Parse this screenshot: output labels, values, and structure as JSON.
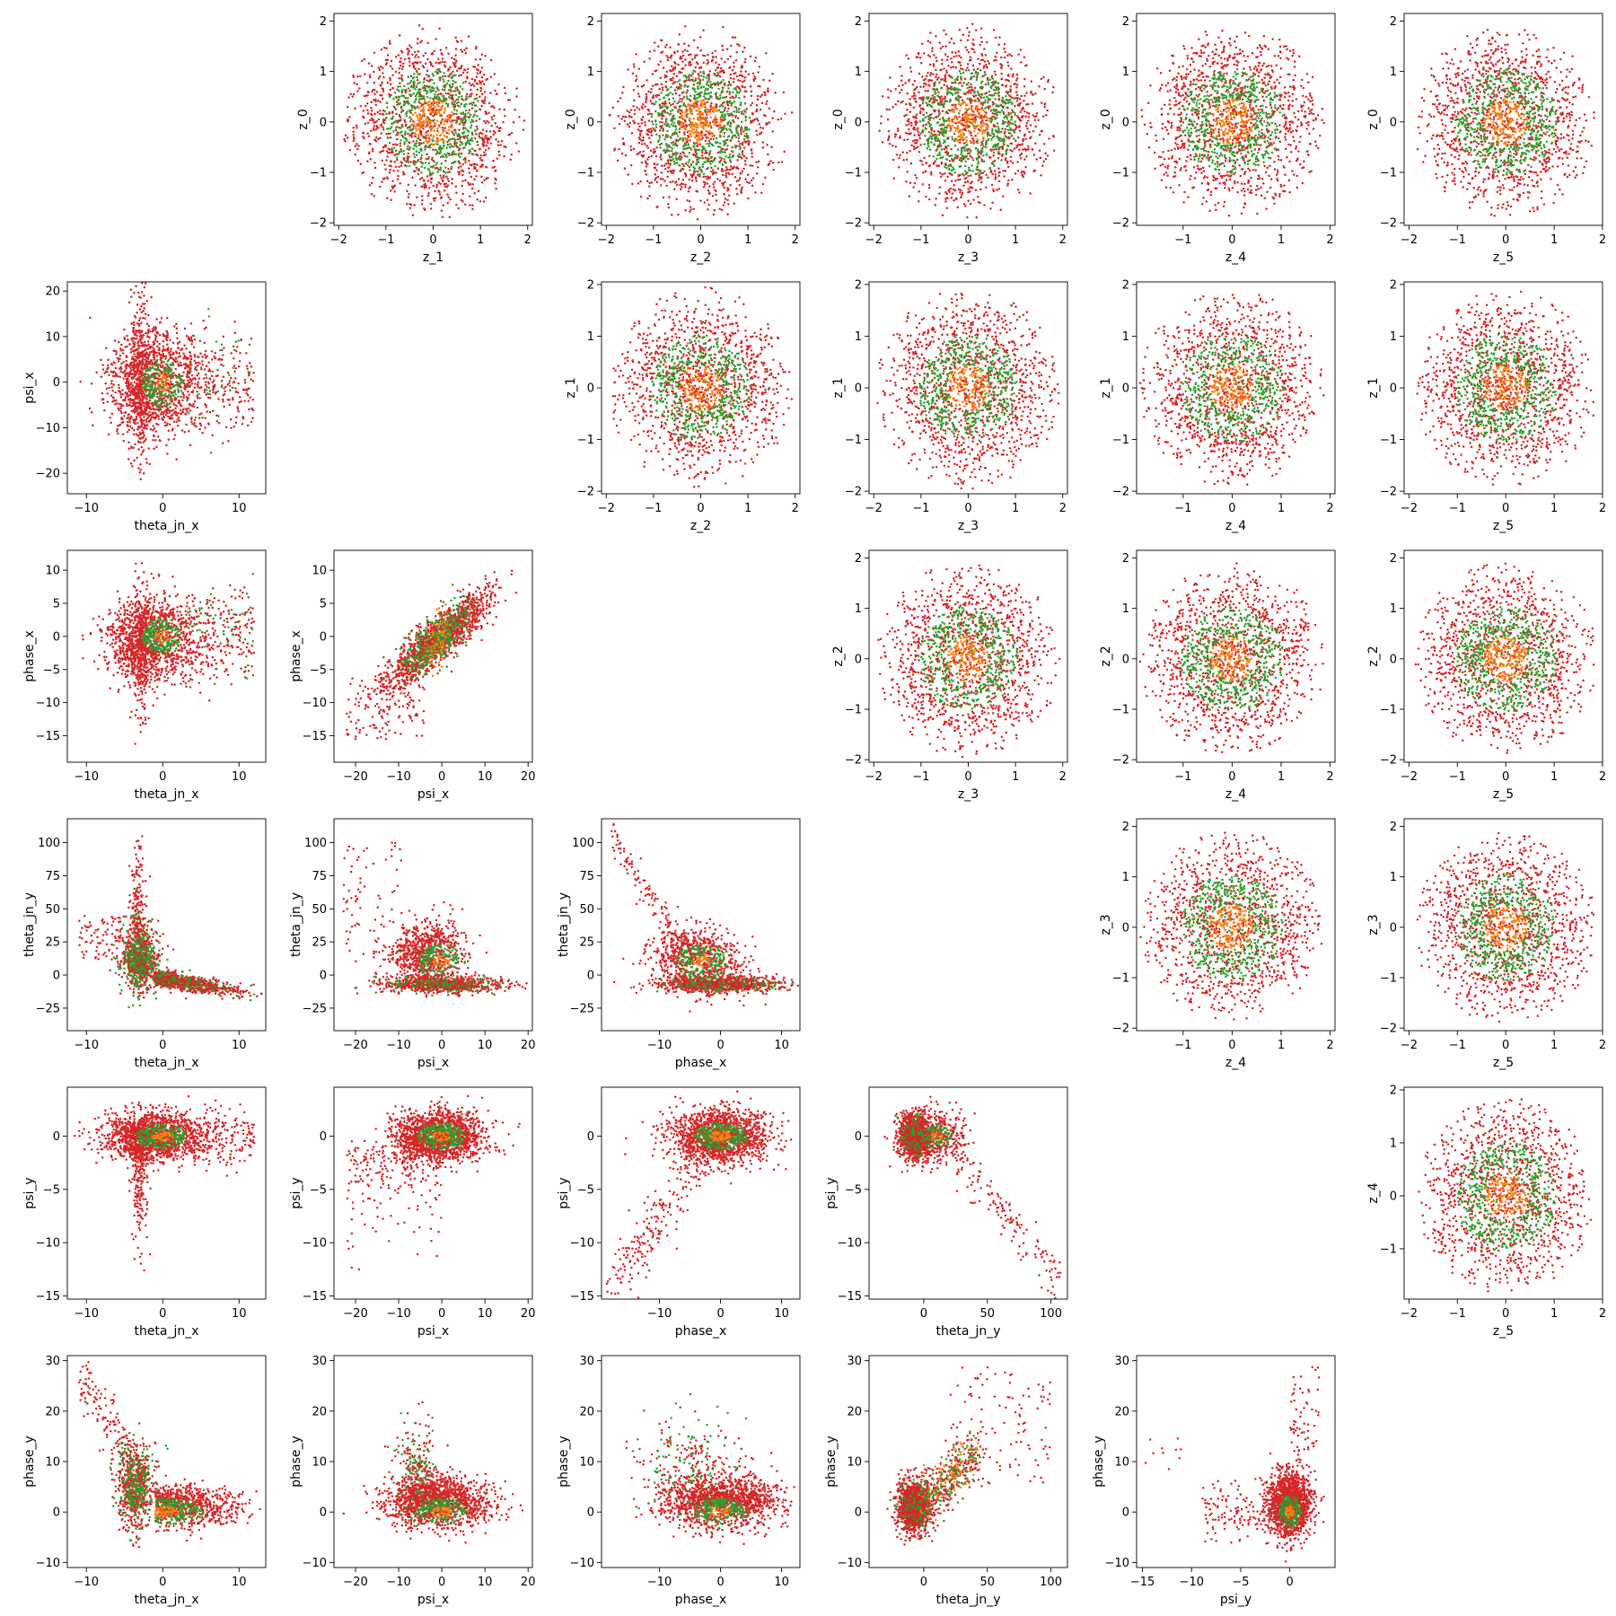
{
  "figure": {
    "description_free": true,
    "colors": {
      "outer": "#d62728",
      "middle": "#2ca02c",
      "core": "#ff7f0e"
    }
  },
  "chart_data": [
    {
      "type": "scatter",
      "row": 0,
      "col": 1,
      "xlabel": "z_1",
      "ylabel": "z_0",
      "xlim": [
        -2.1,
        2.1
      ],
      "ylim": [
        -2.05,
        2.15
      ],
      "xticks": [
        -2,
        -1,
        0,
        1,
        2
      ],
      "yticks": [
        -2,
        -1,
        0,
        1,
        2
      ],
      "dist": "normal",
      "xc": 0,
      "yc": 0,
      "xs": 0.8,
      "ys": 0.8,
      "rmax": 1.95
    },
    {
      "type": "scatter",
      "row": 0,
      "col": 2,
      "xlabel": "z_2",
      "ylabel": "z_0",
      "xlim": [
        -2.1,
        2.1
      ],
      "ylim": [
        -2.05,
        2.15
      ],
      "xticks": [
        -2,
        -1,
        0,
        1,
        2
      ],
      "yticks": [
        -2,
        -1,
        0,
        1,
        2
      ],
      "dist": "normal",
      "xc": 0,
      "yc": 0,
      "xs": 0.8,
      "ys": 0.8,
      "rmax": 1.95
    },
    {
      "type": "scatter",
      "row": 0,
      "col": 3,
      "xlabel": "z_3",
      "ylabel": "z_0",
      "xlim": [
        -2.1,
        2.1
      ],
      "ylim": [
        -2.05,
        2.15
      ],
      "xticks": [
        -2,
        -1,
        0,
        1,
        2
      ],
      "yticks": [
        -2,
        -1,
        0,
        1,
        2
      ],
      "dist": "normal",
      "xc": 0,
      "yc": 0,
      "xs": 0.8,
      "ys": 0.8,
      "rmax": 1.95
    },
    {
      "type": "scatter",
      "row": 0,
      "col": 4,
      "xlabel": "z_4",
      "ylabel": "z_0",
      "xlim": [
        -1.95,
        2.1
      ],
      "ylim": [
        -2.05,
        2.15
      ],
      "xticks": [
        -1,
        0,
        1,
        2
      ],
      "yticks": [
        -2,
        -1,
        0,
        1,
        2
      ],
      "dist": "normal",
      "xc": 0,
      "yc": 0,
      "xs": 0.8,
      "ys": 0.8,
      "rmax": 1.9
    },
    {
      "type": "scatter",
      "row": 0,
      "col": 5,
      "xlabel": "z_5",
      "ylabel": "z_0",
      "xlim": [
        -2.1,
        2.0
      ],
      "ylim": [
        -2.05,
        2.15
      ],
      "xticks": [
        -2,
        -1,
        0,
        1,
        2
      ],
      "yticks": [
        -2,
        -1,
        0,
        1,
        2
      ],
      "dist": "normal",
      "xc": 0,
      "yc": 0,
      "xs": 0.8,
      "ys": 0.8,
      "rmax": 1.9
    },
    {
      "type": "scatter",
      "row": 1,
      "col": 0,
      "xlabel": "theta_jn_x",
      "ylabel": "psi_x",
      "xlim": [
        -12.5,
        13.5
      ],
      "ylim": [
        -24.5,
        22
      ],
      "xticks": [
        -10,
        0,
        10
      ],
      "yticks": [
        -20,
        -10,
        0,
        10,
        20
      ],
      "dist": "custom",
      "shape": "psi_vs_theta"
    },
    {
      "type": "scatter",
      "row": 1,
      "col": 2,
      "xlabel": "z_2",
      "ylabel": "z_1",
      "xlim": [
        -2.1,
        2.1
      ],
      "ylim": [
        -2.05,
        2.05
      ],
      "xticks": [
        -2,
        -1,
        0,
        1,
        2
      ],
      "yticks": [
        -2,
        -1,
        0,
        1,
        2
      ],
      "dist": "normal",
      "xc": 0,
      "yc": 0,
      "xs": 0.8,
      "ys": 0.8,
      "rmax": 1.95
    },
    {
      "type": "scatter",
      "row": 1,
      "col": 3,
      "xlabel": "z_3",
      "ylabel": "z_1",
      "xlim": [
        -2.1,
        2.1
      ],
      "ylim": [
        -2.05,
        2.05
      ],
      "xticks": [
        -2,
        -1,
        0,
        1,
        2
      ],
      "yticks": [
        -2,
        -1,
        0,
        1,
        2
      ],
      "dist": "normal",
      "xc": 0,
      "yc": 0,
      "xs": 0.8,
      "ys": 0.8,
      "rmax": 1.95
    },
    {
      "type": "scatter",
      "row": 1,
      "col": 4,
      "xlabel": "z_4",
      "ylabel": "z_1",
      "xlim": [
        -1.95,
        2.1
      ],
      "ylim": [
        -2.05,
        2.05
      ],
      "xticks": [
        -1,
        0,
        1,
        2
      ],
      "yticks": [
        -2,
        -1,
        0,
        1,
        2
      ],
      "dist": "normal",
      "xc": 0,
      "yc": 0,
      "xs": 0.8,
      "ys": 0.8,
      "rmax": 1.9
    },
    {
      "type": "scatter",
      "row": 1,
      "col": 5,
      "xlabel": "z_5",
      "ylabel": "z_1",
      "xlim": [
        -2.1,
        2.0
      ],
      "ylim": [
        -2.05,
        2.05
      ],
      "xticks": [
        -2,
        -1,
        0,
        1,
        2
      ],
      "yticks": [
        -2,
        -1,
        0,
        1,
        2
      ],
      "dist": "normal",
      "xc": 0,
      "yc": 0,
      "xs": 0.8,
      "ys": 0.8,
      "rmax": 1.9
    },
    {
      "type": "scatter",
      "row": 2,
      "col": 0,
      "xlabel": "theta_jn_x",
      "ylabel": "phase_x",
      "xlim": [
        -12.5,
        13.5
      ],
      "ylim": [
        -19,
        13
      ],
      "xticks": [
        -10,
        0,
        10
      ],
      "yticks": [
        -15,
        -10,
        -5,
        0,
        5,
        10
      ],
      "dist": "custom",
      "shape": "phase_vs_theta"
    },
    {
      "type": "scatter",
      "row": 2,
      "col": 1,
      "xlabel": "psi_x",
      "ylabel": "phase_x",
      "xlim": [
        -25,
        21
      ],
      "ylim": [
        -19,
        13
      ],
      "xticks": [
        -20,
        -10,
        0,
        10,
        20
      ],
      "yticks": [
        -15,
        -10,
        -5,
        0,
        5,
        10
      ],
      "dist": "custom",
      "shape": "phase_vs_psi"
    },
    {
      "type": "scatter",
      "row": 2,
      "col": 3,
      "xlabel": "z_3",
      "ylabel": "z_2",
      "xlim": [
        -2.1,
        2.1
      ],
      "ylim": [
        -2.05,
        2.15
      ],
      "xticks": [
        -2,
        -1,
        0,
        1,
        2
      ],
      "yticks": [
        -2,
        -1,
        0,
        1,
        2
      ],
      "dist": "normal",
      "xc": 0,
      "yc": 0,
      "xs": 0.8,
      "ys": 0.8,
      "rmax": 1.95
    },
    {
      "type": "scatter",
      "row": 2,
      "col": 4,
      "xlabel": "z_4",
      "ylabel": "z_2",
      "xlim": [
        -1.95,
        2.1
      ],
      "ylim": [
        -2.05,
        2.15
      ],
      "xticks": [
        -1,
        0,
        1,
        2
      ],
      "yticks": [
        -2,
        -1,
        0,
        1,
        2
      ],
      "dist": "normal",
      "xc": 0,
      "yc": 0,
      "xs": 0.8,
      "ys": 0.8,
      "rmax": 1.9
    },
    {
      "type": "scatter",
      "row": 2,
      "col": 5,
      "xlabel": "z_5",
      "ylabel": "z_2",
      "xlim": [
        -2.1,
        2.0
      ],
      "ylim": [
        -2.05,
        2.15
      ],
      "xticks": [
        -2,
        -1,
        0,
        1,
        2
      ],
      "yticks": [
        -2,
        -1,
        0,
        1,
        2
      ],
      "dist": "normal",
      "xc": 0,
      "yc": 0,
      "xs": 0.8,
      "ys": 0.8,
      "rmax": 1.9
    },
    {
      "type": "scatter",
      "row": 3,
      "col": 0,
      "xlabel": "theta_jn_x",
      "ylabel": "theta_jn_y",
      "xlim": [
        -12.5,
        13.5
      ],
      "ylim": [
        -42,
        118
      ],
      "xticks": [
        -10,
        0,
        10
      ],
      "yticks": [
        -25,
        0,
        25,
        50,
        75,
        100
      ],
      "dist": "custom",
      "shape": "thy_vs_thx"
    },
    {
      "type": "scatter",
      "row": 3,
      "col": 1,
      "xlabel": "psi_x",
      "ylabel": "theta_jn_y",
      "xlim": [
        -25,
        21
      ],
      "ylim": [
        -42,
        118
      ],
      "xticks": [
        -20,
        -10,
        0,
        10,
        20
      ],
      "yticks": [
        -25,
        0,
        25,
        50,
        75,
        100
      ],
      "dist": "custom",
      "shape": "thy_vs_psi"
    },
    {
      "type": "scatter",
      "row": 3,
      "col": 2,
      "xlabel": "phase_x",
      "ylabel": "theta_jn_y",
      "xlim": [
        -19.5,
        13
      ],
      "ylim": [
        -42,
        118
      ],
      "xticks": [
        -10,
        0,
        10
      ],
      "yticks": [
        -25,
        0,
        25,
        50,
        75,
        100
      ],
      "dist": "custom",
      "shape": "thy_vs_phase"
    },
    {
      "type": "scatter",
      "row": 3,
      "col": 4,
      "xlabel": "z_4",
      "ylabel": "z_3",
      "xlim": [
        -1.95,
        2.1
      ],
      "ylim": [
        -2.05,
        2.15
      ],
      "xticks": [
        -1,
        0,
        1,
        2
      ],
      "yticks": [
        -2,
        -1,
        0,
        1,
        2
      ],
      "dist": "normal",
      "xc": 0,
      "yc": 0,
      "xs": 0.8,
      "ys": 0.8,
      "rmax": 1.9
    },
    {
      "type": "scatter",
      "row": 3,
      "col": 5,
      "xlabel": "z_5",
      "ylabel": "z_3",
      "xlim": [
        -2.1,
        2.0
      ],
      "ylim": [
        -2.05,
        2.15
      ],
      "xticks": [
        -2,
        -1,
        0,
        1,
        2
      ],
      "yticks": [
        -2,
        -1,
        0,
        1,
        2
      ],
      "dist": "normal",
      "xc": 0,
      "yc": 0,
      "xs": 0.8,
      "ys": 0.8,
      "rmax": 1.9
    },
    {
      "type": "scatter",
      "row": 4,
      "col": 0,
      "xlabel": "theta_jn_x",
      "ylabel": "psi_y",
      "xlim": [
        -12.5,
        13.5
      ],
      "ylim": [
        -15.3,
        4.6
      ],
      "xticks": [
        -10,
        0,
        10
      ],
      "yticks": [
        -15,
        -10,
        -5,
        0
      ],
      "dist": "custom",
      "shape": "psiy_vs_thx"
    },
    {
      "type": "scatter",
      "row": 4,
      "col": 1,
      "xlabel": "psi_x",
      "ylabel": "psi_y",
      "xlim": [
        -25,
        21
      ],
      "ylim": [
        -15.3,
        4.6
      ],
      "xticks": [
        -20,
        -10,
        0,
        10,
        20
      ],
      "yticks": [
        -15,
        -10,
        -5,
        0
      ],
      "dist": "custom",
      "shape": "psiy_vs_psix"
    },
    {
      "type": "scatter",
      "row": 4,
      "col": 2,
      "xlabel": "phase_x",
      "ylabel": "psi_y",
      "xlim": [
        -19.5,
        13
      ],
      "ylim": [
        -15.3,
        4.6
      ],
      "xticks": [
        -10,
        0,
        10
      ],
      "yticks": [
        -15,
        -10,
        -5,
        0
      ],
      "dist": "custom",
      "shape": "psiy_vs_phase"
    },
    {
      "type": "scatter",
      "row": 4,
      "col": 3,
      "xlabel": "theta_jn_y",
      "ylabel": "psi_y",
      "xlim": [
        -43,
        113
      ],
      "ylim": [
        -15.3,
        4.6
      ],
      "xticks": [
        0,
        50,
        100
      ],
      "yticks": [
        -15,
        -10,
        -5,
        0
      ],
      "dist": "custom",
      "shape": "psiy_vs_thy"
    },
    {
      "type": "scatter",
      "row": 4,
      "col": 5,
      "xlabel": "z_5",
      "ylabel": "z_4",
      "xlim": [
        -2.1,
        2.0
      ],
      "ylim": [
        -1.95,
        2.05
      ],
      "xticks": [
        -2,
        -1,
        0,
        1,
        2
      ],
      "yticks": [
        -1,
        0,
        1,
        2
      ],
      "dist": "normal",
      "xc": 0,
      "yc": 0,
      "xs": 0.8,
      "ys": 0.8,
      "rmax": 1.85
    },
    {
      "type": "scatter",
      "row": 5,
      "col": 0,
      "xlabel": "theta_jn_x",
      "ylabel": "phase_y",
      "xlim": [
        -12.5,
        13.5
      ],
      "ylim": [
        -11,
        31
      ],
      "xticks": [
        -10,
        0,
        10
      ],
      "yticks": [
        -10,
        0,
        10,
        20,
        30
      ],
      "dist": "custom",
      "shape": "phy_vs_thx"
    },
    {
      "type": "scatter",
      "row": 5,
      "col": 1,
      "xlabel": "psi_x",
      "ylabel": "phase_y",
      "xlim": [
        -25,
        21
      ],
      "ylim": [
        -11,
        31
      ],
      "xticks": [
        -20,
        -10,
        0,
        10,
        20
      ],
      "yticks": [
        -10,
        0,
        10,
        20,
        30
      ],
      "dist": "custom",
      "shape": "phy_vs_psix"
    },
    {
      "type": "scatter",
      "row": 5,
      "col": 2,
      "xlabel": "phase_x",
      "ylabel": "phase_y",
      "xlim": [
        -19.5,
        13
      ],
      "ylim": [
        -11,
        31
      ],
      "xticks": [
        -10,
        0,
        10
      ],
      "yticks": [
        -10,
        0,
        10,
        20,
        30
      ],
      "dist": "custom",
      "shape": "phy_vs_phase"
    },
    {
      "type": "scatter",
      "row": 5,
      "col": 3,
      "xlabel": "theta_jn_y",
      "ylabel": "phase_y",
      "xlim": [
        -43,
        113
      ],
      "ylim": [
        -11,
        31
      ],
      "xticks": [
        0,
        50,
        100
      ],
      "yticks": [
        -10,
        0,
        10,
        20,
        30
      ],
      "dist": "custom",
      "shape": "phy_vs_thy"
    },
    {
      "type": "scatter",
      "row": 5,
      "col": 4,
      "xlabel": "psi_y",
      "ylabel": "phase_y",
      "xlim": [
        -15.6,
        4.6
      ],
      "ylim": [
        -11,
        31
      ],
      "xticks": [
        -15,
        -10,
        -5,
        0
      ],
      "yticks": [
        -10,
        0,
        10,
        20,
        30
      ],
      "dist": "custom",
      "shape": "phy_vs_psiy"
    }
  ]
}
